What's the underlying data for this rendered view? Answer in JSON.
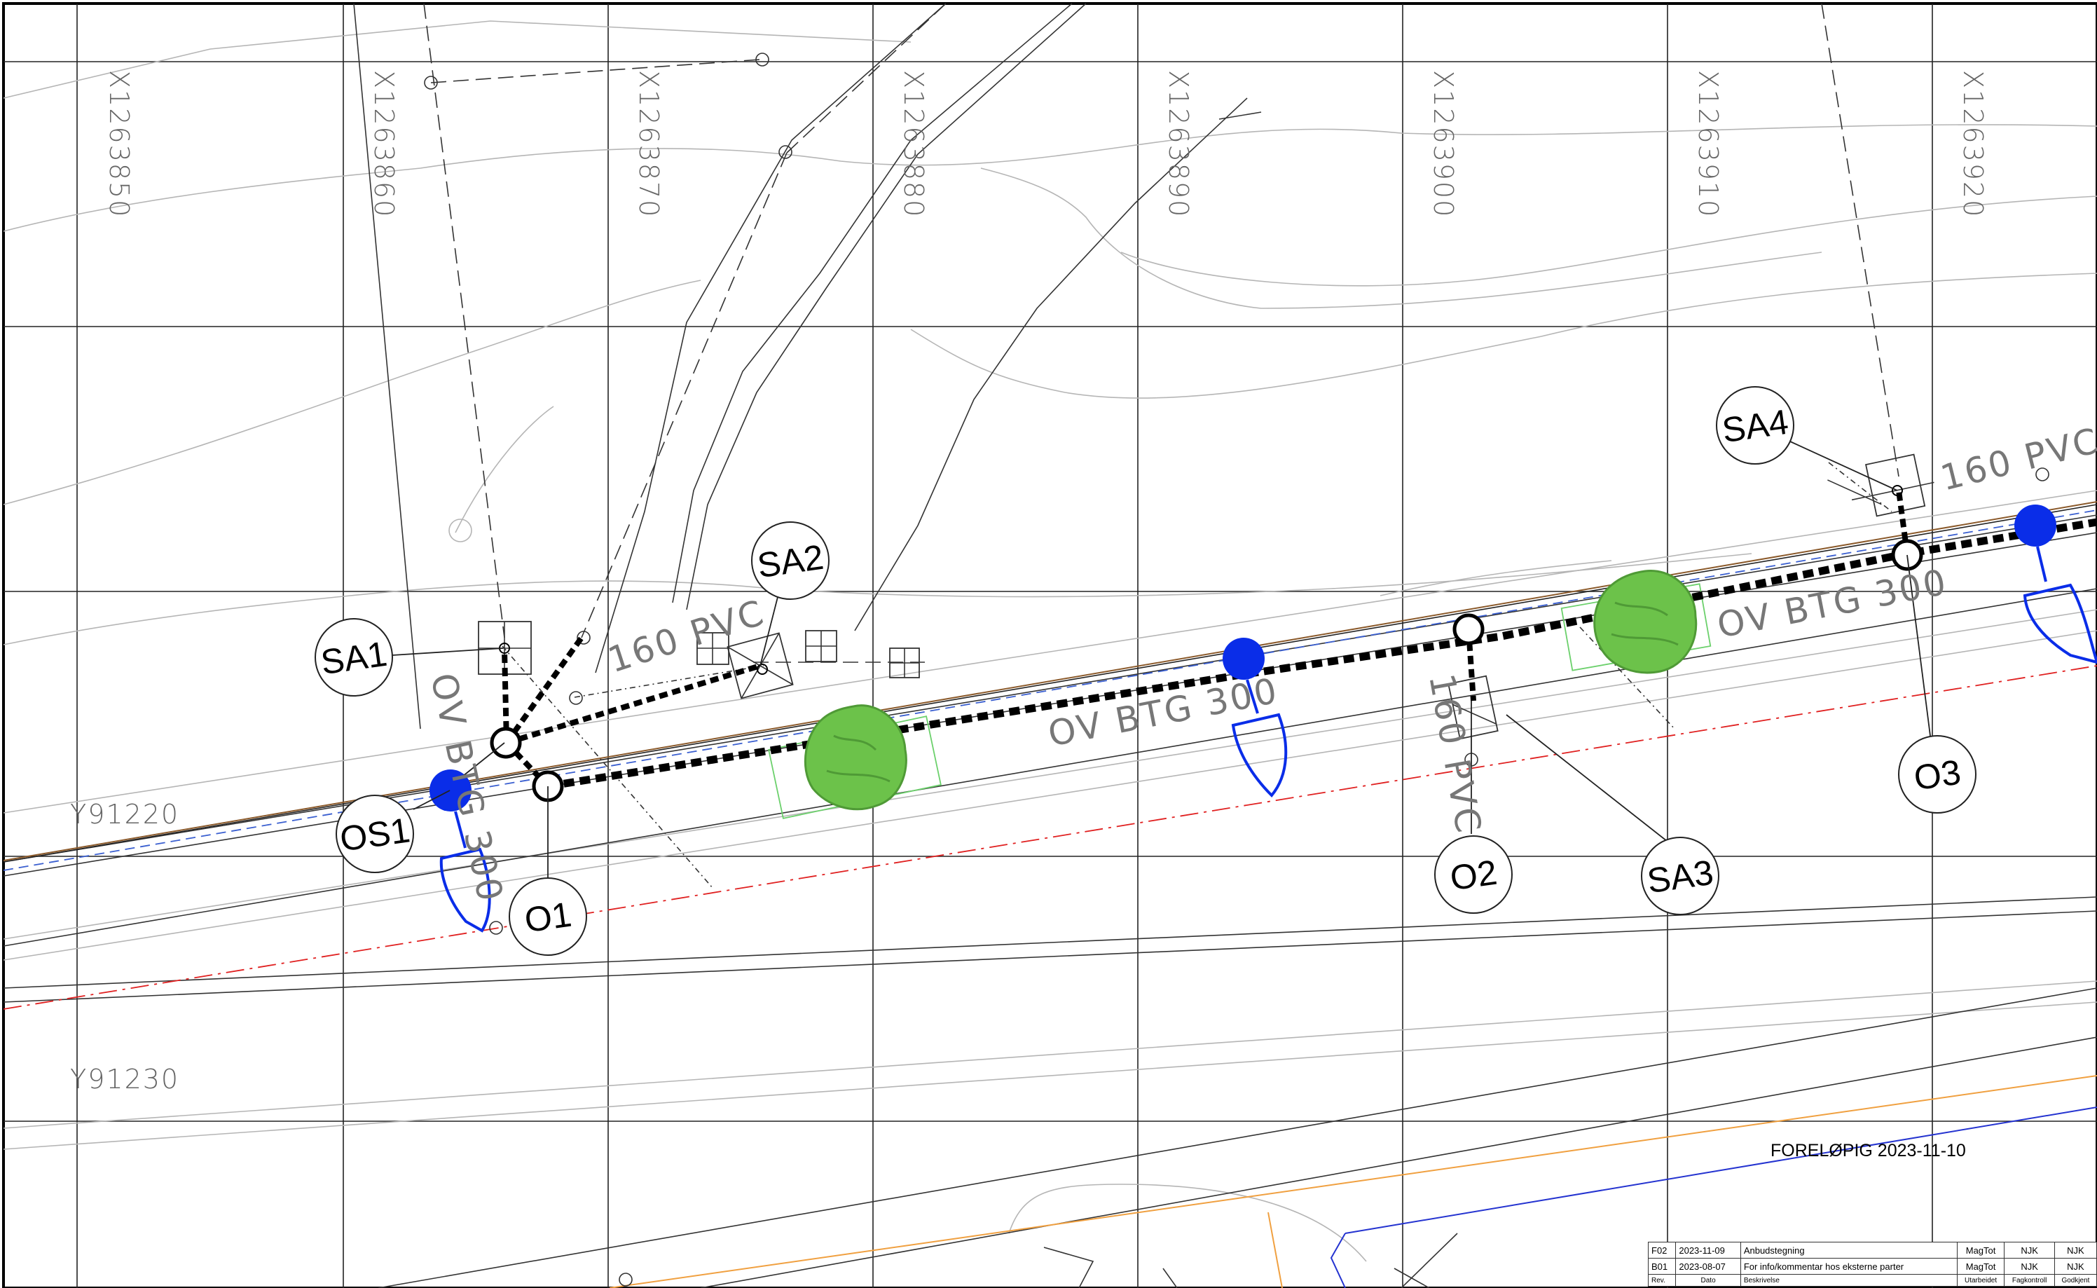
{
  "x_coordinates": [
    "X1263850",
    "X1263860",
    "X1263870",
    "X1263880",
    "X1263890",
    "X1263900",
    "X1263910",
    "X1263920"
  ],
  "y_coordinates": [
    "Y91220",
    "Y91230"
  ],
  "pipe_labels": {
    "pvc_1": "160 PVC",
    "pvc_2": "160 PVC",
    "pvc_3": "160 PVC",
    "btg_1": "OV BTG 300",
    "btg_2": "OV BTG 300",
    "btg_3": "OV BTG 300"
  },
  "nodes": {
    "sa1": "SA1",
    "sa2": "SA2",
    "sa3": "SA3",
    "sa4": "SA4",
    "os1": "OS1",
    "o1": "O1",
    "o2": "O2",
    "o3": "O3"
  },
  "status": "FORELØPIG 2023-11-10",
  "revisions": [
    {
      "rev": "F02",
      "date": "2023-11-09",
      "description": "Anbudstegning",
      "drawn": "MagTot",
      "checked": "NJK",
      "approved": "NJK"
    },
    {
      "rev": "B01",
      "date": "2023-08-07",
      "description": "For info/kommentar hos eksterne parter",
      "drawn": "MagTot",
      "checked": "NJK",
      "approved": "NJK"
    }
  ],
  "revision_headers": {
    "rev": "Rev.",
    "date": "Dato",
    "description": "Beskrivelse",
    "drawn": "Utarbeidet",
    "checked": "Fagkontroll",
    "approved": "Godkjent"
  },
  "colors": {
    "hydrant": "#0a2de8",
    "tree": "#6cc24a",
    "red_line": "#e02020"
  }
}
